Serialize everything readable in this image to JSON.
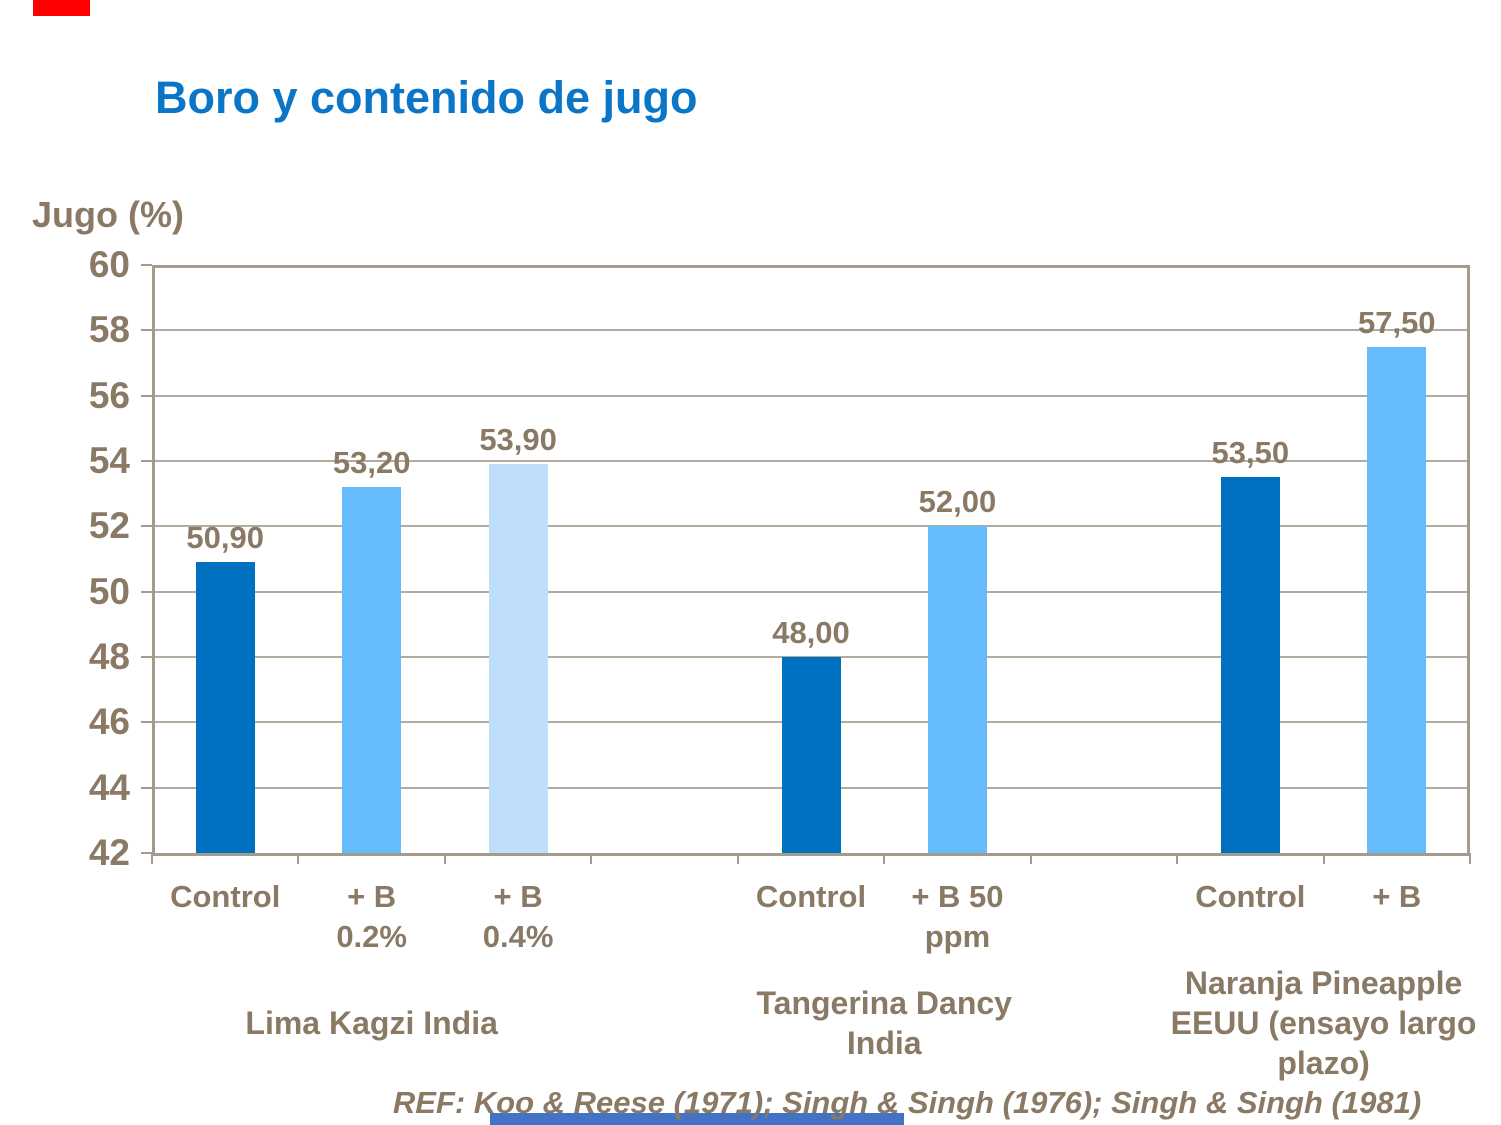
{
  "slide": {
    "title": "Boro y contenido de jugo"
  },
  "colors": {
    "title_blue": "#0b76c8",
    "text_brown": "#8a7a65",
    "grid": "#b3aaa0",
    "axis_border": "#a49b8d",
    "accent_red": "#fe0000",
    "accent_blue": "#4472c4"
  },
  "chart_data": {
    "type": "bar",
    "title": "Boro y contenido de jugo",
    "ylabel": "Jugo (%)",
    "xlabel": "",
    "ylim": [
      42,
      60
    ],
    "ytick_step": 2,
    "grid": true,
    "legend_position": "none",
    "decimal_style": "comma",
    "groups": [
      {
        "label": "Lima Kagzi India",
        "bars": [
          {
            "category": "Control",
            "value": 50.9,
            "value_label": "50,90",
            "color": "#0070c0"
          },
          {
            "category": "+ B\n0.2%",
            "value": 53.2,
            "value_label": "53,20",
            "color": "#66bbfa"
          },
          {
            "category": "+ B\n0.4%",
            "value": 53.9,
            "value_label": "53,90",
            "color": "#bfdefb"
          }
        ]
      },
      {
        "label": "Tangerina Dancy\nIndia",
        "bars": [
          {
            "category": "Control",
            "value": 48.0,
            "value_label": "48,00",
            "color": "#0070c0"
          },
          {
            "category": "+ B 50\nppm",
            "value": 52.0,
            "value_label": "52,00",
            "color": "#66bbfa"
          }
        ]
      },
      {
        "label": "Naranja Pineapple\nEEUU (ensayo largo\nplazo)",
        "bars": [
          {
            "category": "Control",
            "value": 53.5,
            "value_label": "53,50",
            "color": "#0070c0"
          },
          {
            "category": "+ B",
            "value": 57.5,
            "value_label": "57,50",
            "color": "#66bbfa"
          }
        ]
      }
    ]
  },
  "footer": {
    "reference": "REF: Koo & Reese (1971); Singh & Singh (1976); Singh & Singh (1981)"
  }
}
